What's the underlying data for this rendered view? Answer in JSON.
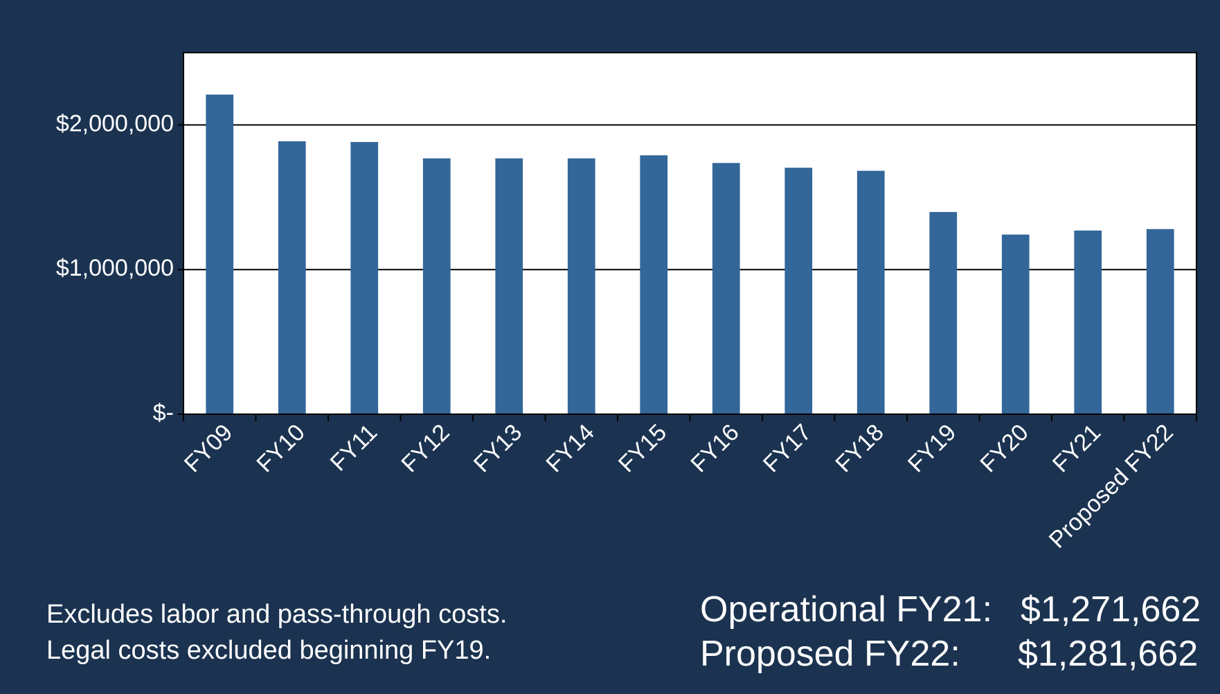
{
  "chart_data": {
    "type": "bar",
    "categories": [
      "FY09",
      "FY10",
      "FY11",
      "FY12",
      "FY13",
      "FY14",
      "FY15",
      "FY16",
      "FY17",
      "FY18",
      "FY19",
      "FY20",
      "FY21",
      "Proposed FY22"
    ],
    "values": [
      2210000,
      1887000,
      1882000,
      1769000,
      1769000,
      1769000,
      1790000,
      1737000,
      1704000,
      1683000,
      1398000,
      1242000,
      1270000,
      1280000
    ],
    "color": "#336699",
    "ylim": [
      0,
      2500000
    ],
    "yticks": [
      {
        "value": 0,
        "label": "$-"
      },
      {
        "value": 1000000,
        "label": "$1,000,000"
      },
      {
        "value": 2000000,
        "label": "$2,000,000"
      }
    ],
    "grid": true,
    "notes": [
      "Excludes labor and pass-through costs.",
      "Legal costs excluded beginning FY19."
    ],
    "summary": [
      {
        "label": "Operational FY21:",
        "amount": "$1,271,662"
      },
      {
        "label": "Proposed FY22:",
        "amount": "$1,281,662"
      }
    ]
  }
}
